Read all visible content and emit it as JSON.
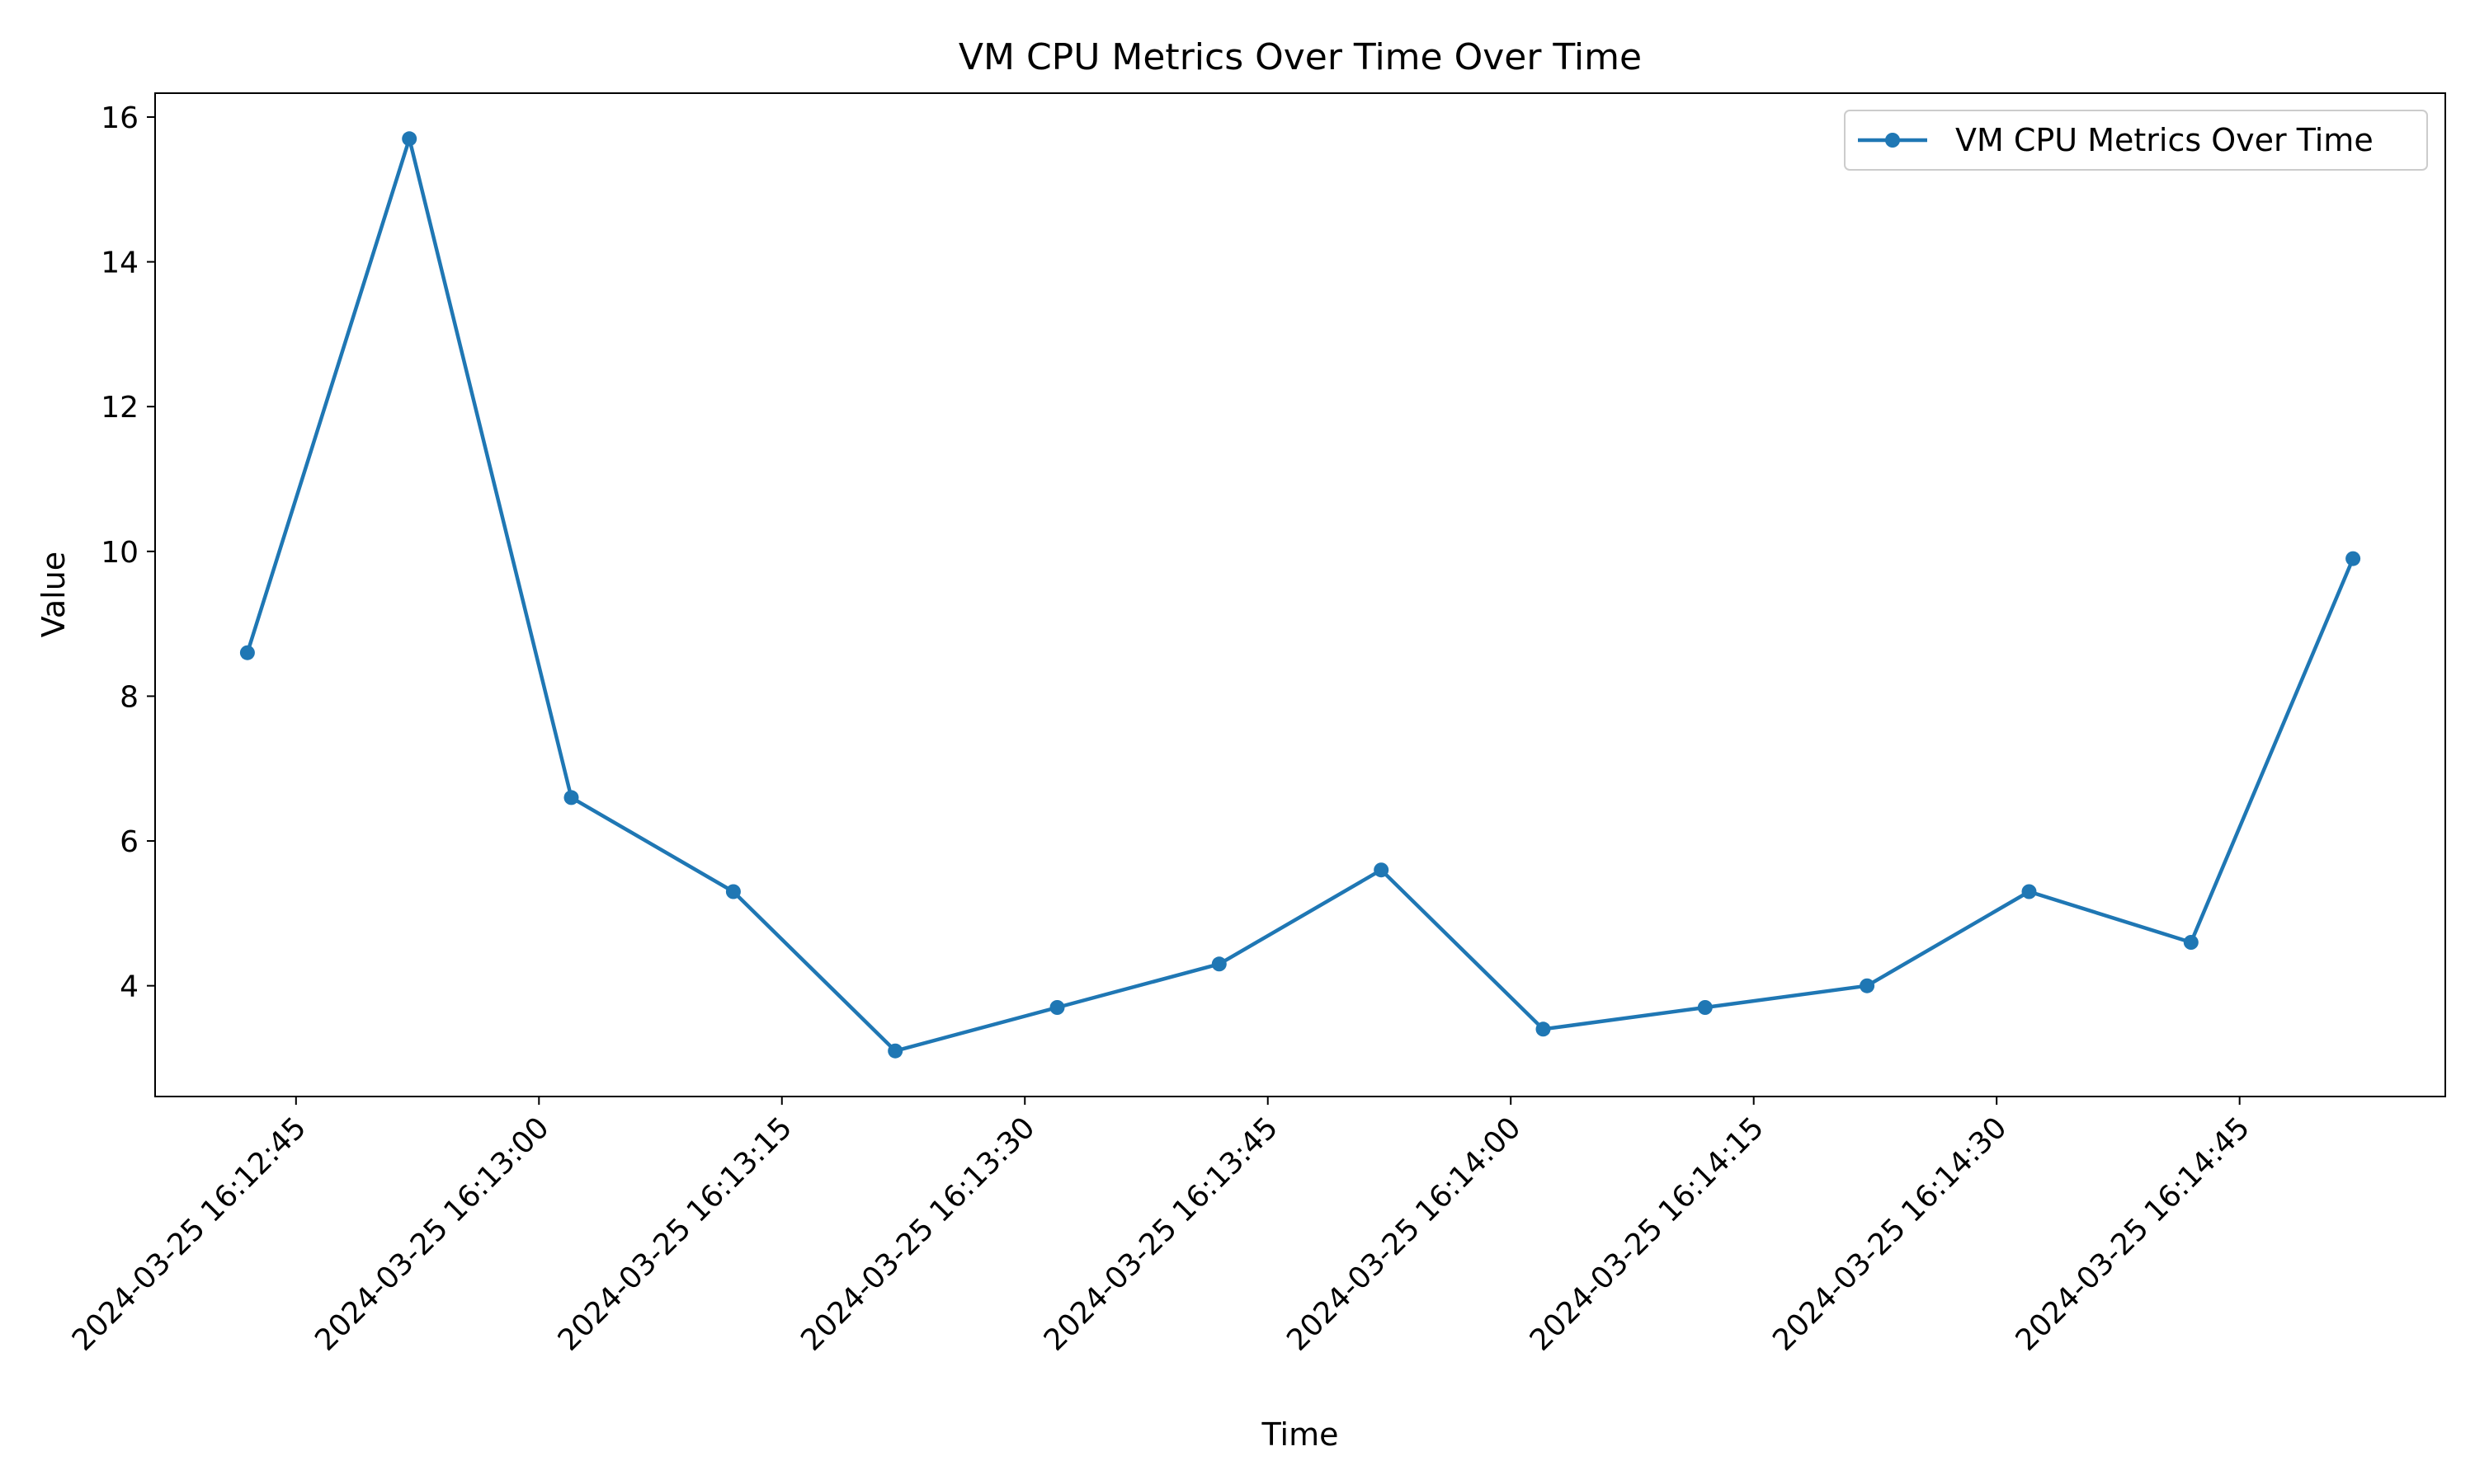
{
  "chart_data": {
    "type": "line",
    "title": "VM CPU Metrics Over Time Over Time",
    "xlabel": "Time",
    "ylabel": "Value",
    "x": [
      "2024-03-25 16:12:42",
      "2024-03-25 16:12:52",
      "2024-03-25 16:13:02",
      "2024-03-25 16:13:12",
      "2024-03-25 16:13:22",
      "2024-03-25 16:13:32",
      "2024-03-25 16:13:42",
      "2024-03-25 16:13:52",
      "2024-03-25 16:14:02",
      "2024-03-25 16:14:12",
      "2024-03-25 16:14:22",
      "2024-03-25 16:14:32",
      "2024-03-25 16:14:42",
      "2024-03-25 16:14:52"
    ],
    "series": [
      {
        "name": "VM CPU Metrics Over Time",
        "color": "#1f77b4",
        "values": [
          8.6,
          15.7,
          6.6,
          5.3,
          3.1,
          3.7,
          4.3,
          5.6,
          3.4,
          3.7,
          4.0,
          5.3,
          4.6,
          9.9
        ]
      }
    ],
    "xticks": [
      "2024-03-25 16:12:45",
      "2024-03-25 16:13:00",
      "2024-03-25 16:13:15",
      "2024-03-25 16:13:30",
      "2024-03-25 16:13:45",
      "2024-03-25 16:14:00",
      "2024-03-25 16:14:15",
      "2024-03-25 16:14:30",
      "2024-03-25 16:14:45"
    ],
    "yticks": [
      4,
      6,
      8,
      10,
      12,
      14,
      16
    ],
    "xlim": [
      "2024-03-25 16:12:36.3",
      "2024-03-25 16:14:57.7"
    ],
    "ylim": [
      2.47,
      16.33
    ],
    "grid": false,
    "legend_position": "top-right"
  }
}
